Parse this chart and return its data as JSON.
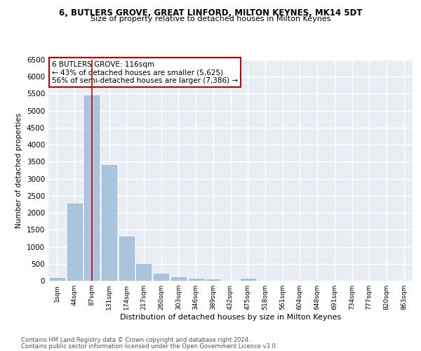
{
  "title1": "6, BUTLERS GROVE, GREAT LINFORD, MILTON KEYNES, MK14 5DT",
  "title2": "Size of property relative to detached houses in Milton Keynes",
  "xlabel": "Distribution of detached houses by size in Milton Keynes",
  "ylabel": "Number of detached properties",
  "footnote1": "Contains HM Land Registry data © Crown copyright and database right 2024.",
  "footnote2": "Contains public sector information licensed under the Open Government Licence v3.0.",
  "bar_labels": [
    "1sqm",
    "44sqm",
    "87sqm",
    "131sqm",
    "174sqm",
    "217sqm",
    "260sqm",
    "303sqm",
    "346sqm",
    "389sqm",
    "432sqm",
    "475sqm",
    "518sqm",
    "561sqm",
    "604sqm",
    "648sqm",
    "691sqm",
    "734sqm",
    "777sqm",
    "820sqm",
    "863sqm"
  ],
  "bar_values": [
    80,
    2280,
    5450,
    3400,
    1300,
    490,
    200,
    105,
    65,
    35,
    10,
    60,
    0,
    0,
    0,
    0,
    0,
    0,
    0,
    0,
    0
  ],
  "bar_color": "#aac4dd",
  "bar_edgecolor": "#8ab4ce",
  "bg_color": "#e8eef4",
  "grid_color": "#ffffff",
  "annotation_box_text": "6 BUTLERS GROVE: 116sqm\n← 43% of detached houses are smaller (5,625)\n56% of semi-detached houses are larger (7,386) →",
  "annotation_box_color": "#ffffff",
  "annotation_box_edgecolor": "#cc0000",
  "redline_x": 2,
  "ylim": [
    0,
    6500
  ],
  "yticks": [
    0,
    500,
    1000,
    1500,
    2000,
    2500,
    3000,
    3500,
    4000,
    4500,
    5000,
    5500,
    6000,
    6500
  ]
}
